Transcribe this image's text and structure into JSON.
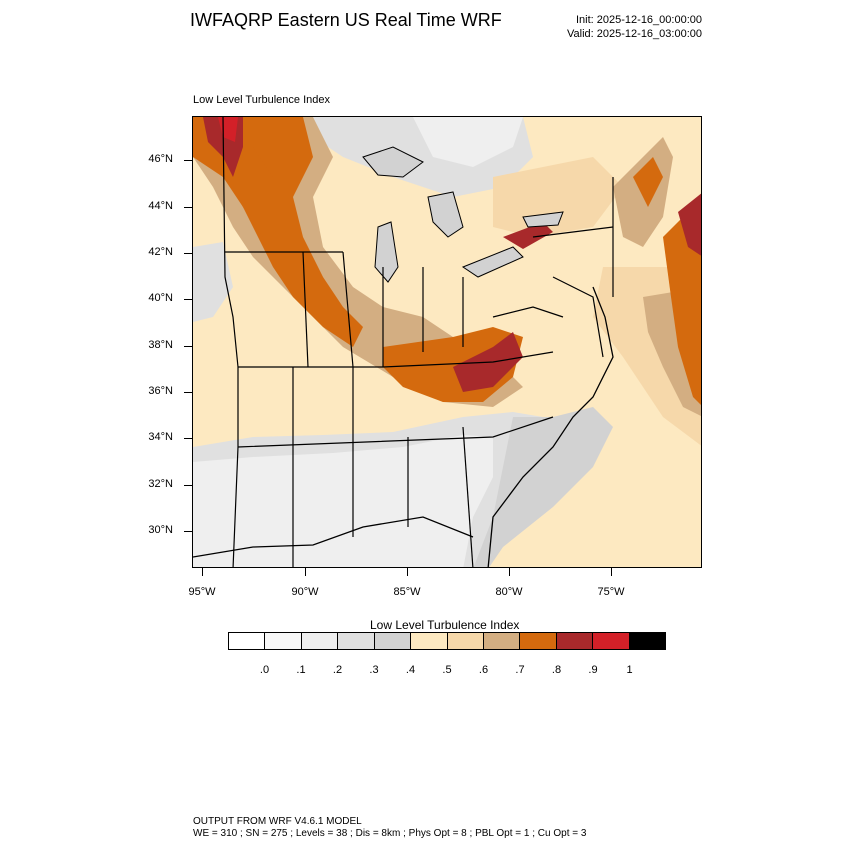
{
  "header": {
    "title": "IWFAQRP Eastern US Real Time WRF",
    "init": "Init: 2025-12-16_00:00:00",
    "valid": "Valid: 2025-12-16_03:00:00"
  },
  "map": {
    "label": "Low Level Turbulence Index",
    "lat_labels": [
      "46°N",
      "44°N",
      "42°N",
      "40°N",
      "38°N",
      "36°N",
      "34°N",
      "32°N",
      "30°N"
    ],
    "lon_labels": [
      "95°W",
      "90°W",
      "85°W",
      "80°W",
      "75°W"
    ]
  },
  "colorbar": {
    "title": "Low Level Turbulence Index",
    "colors": [
      "#ffffff",
      "#f7f7f7",
      "#efefef",
      "#e0e0e0",
      "#d2d2d2",
      "#fde9c1",
      "#f6d8aa",
      "#d3ae82",
      "#d46a0e",
      "#a8292b",
      "#d32028",
      "#000000"
    ],
    "labels": [
      ".0",
      ".1",
      ".2",
      ".3",
      ".4",
      ".5",
      ".6",
      ".7",
      ".8",
      ".9",
      "1"
    ]
  },
  "footer": {
    "line1": "OUTPUT FROM WRF V4.6.1 MODEL",
    "line2": "WE = 310 ; SN = 275 ; Levels = 38 ; Dis = 8km ; Phys Opt = 8 ; PBL Opt = 1 ; Cu Opt = 3"
  }
}
